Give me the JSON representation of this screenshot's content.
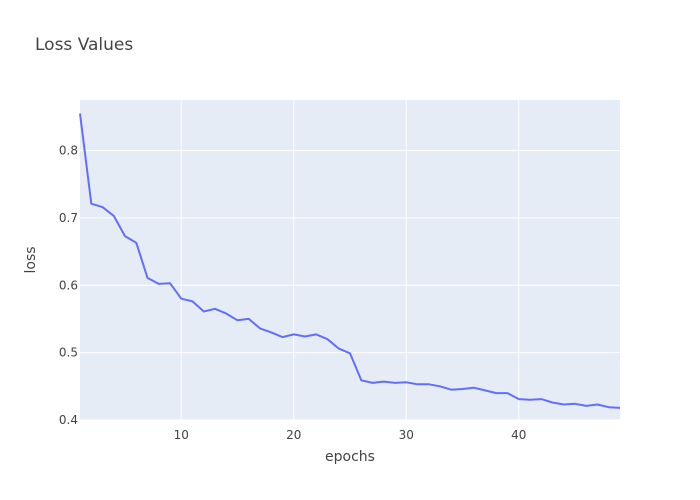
{
  "chart_data": {
    "type": "line",
    "title": "Loss Values",
    "xlabel": "epochs",
    "ylabel": "loss",
    "xlim": [
      1,
      49
    ],
    "ylim": [
      0.4,
      0.875
    ],
    "xticks": [
      10,
      20,
      30,
      40
    ],
    "yticks": [
      0.4,
      0.5,
      0.6,
      0.7,
      0.8
    ],
    "grid": true,
    "colors": {
      "line": "#636efa",
      "plot_bg": "#e5ecf6",
      "grid": "#ffffff"
    },
    "series": [
      {
        "x": [
          1,
          2,
          3,
          4,
          5,
          6,
          7,
          8,
          9,
          10,
          11,
          12,
          13,
          14,
          15,
          16,
          17,
          18,
          19,
          20,
          21,
          22,
          23,
          24,
          25,
          26,
          27,
          28,
          29,
          30,
          31,
          32,
          33,
          34,
          35,
          36,
          37,
          38,
          39,
          40,
          41,
          42,
          43,
          44,
          45,
          46,
          47,
          48,
          49
        ],
        "y": [
          0.855,
          0.721,
          0.716,
          0.703,
          0.673,
          0.663,
          0.611,
          0.602,
          0.603,
          0.58,
          0.576,
          0.561,
          0.565,
          0.558,
          0.548,
          0.55,
          0.536,
          0.53,
          0.523,
          0.527,
          0.524,
          0.527,
          0.52,
          0.506,
          0.499,
          0.459,
          0.455,
          0.457,
          0.455,
          0.456,
          0.453,
          0.453,
          0.45,
          0.445,
          0.446,
          0.448,
          0.444,
          0.44,
          0.44,
          0.431,
          0.43,
          0.431,
          0.426,
          0.423,
          0.424,
          0.421,
          0.423,
          0.419,
          0.418
        ]
      }
    ]
  }
}
